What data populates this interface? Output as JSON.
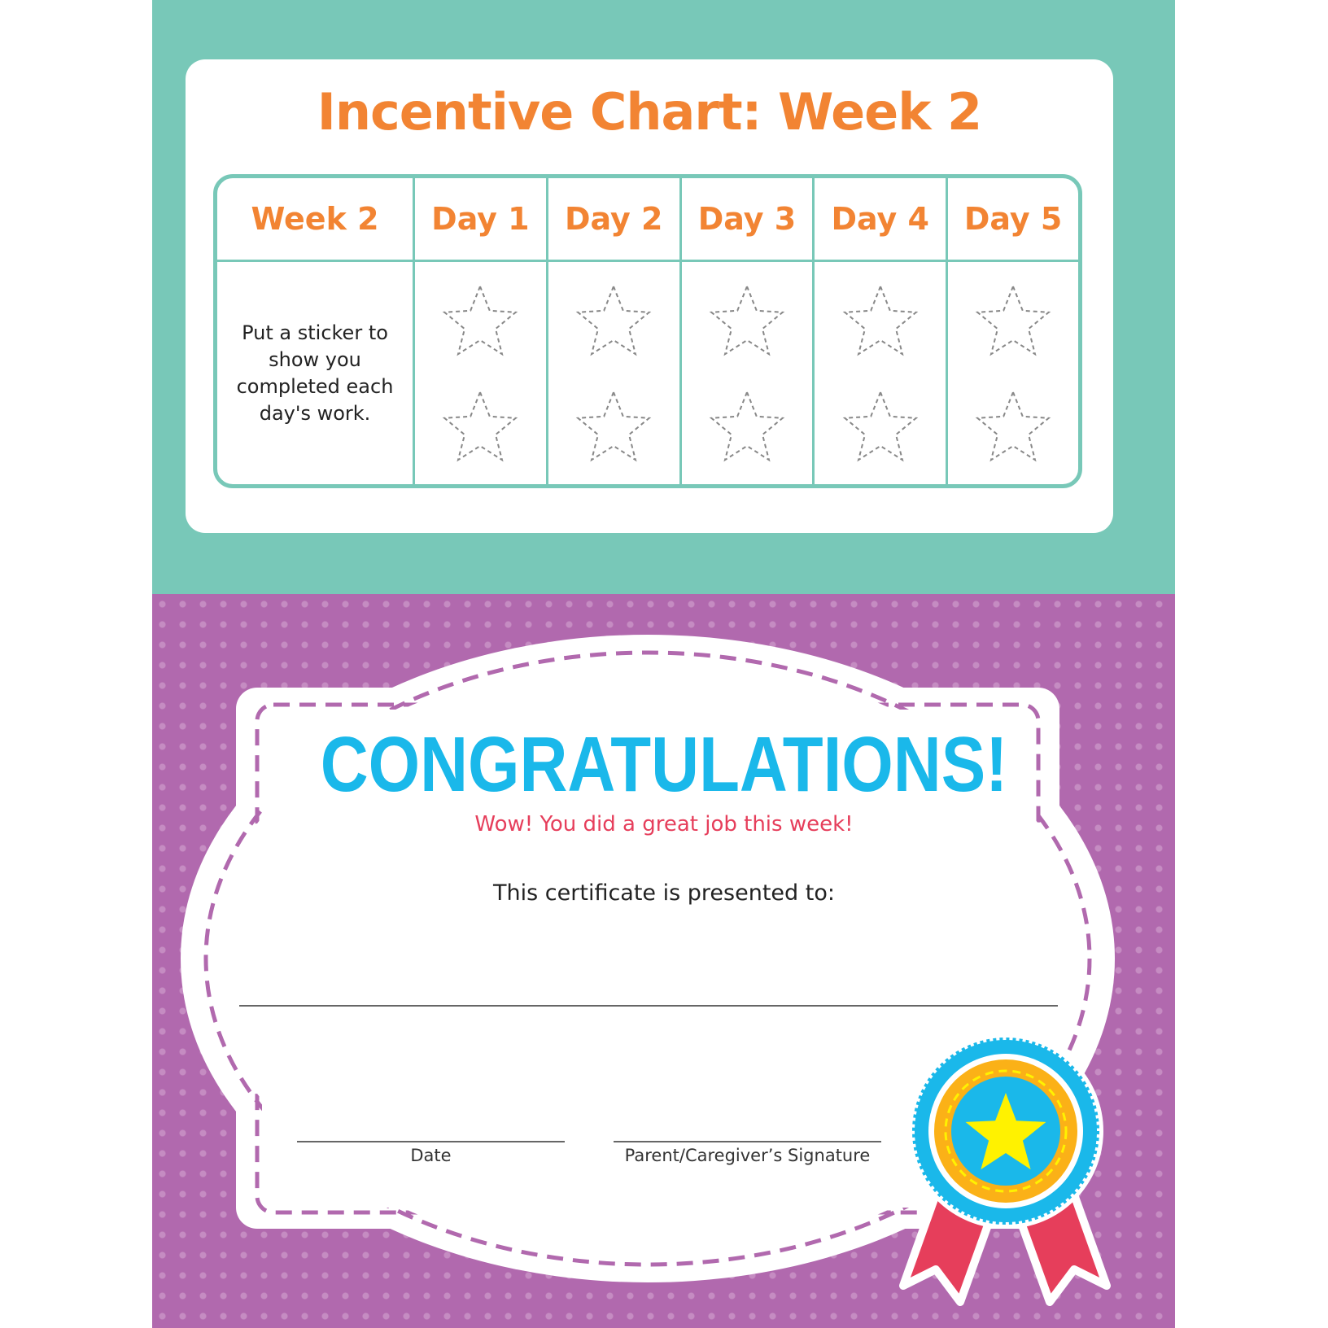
{
  "chart": {
    "title": "Incentive Chart: Week 2",
    "headers": [
      "Week 2",
      "Day 1",
      "Day 2",
      "Day 3",
      "Day 4",
      "Day 5"
    ],
    "instruction": "Put a sticker to show you completed each day's work.",
    "stars_per_day": 2,
    "star_icon": "dashed-star-outline"
  },
  "certificate": {
    "heading": "CONGRATULATIONS!",
    "subheading": "Wow! You did a great job this week!",
    "presented_to": "This certificate is presented to:",
    "date_label": "Date",
    "signature_label": "Parent/Caregiver’s Signature",
    "badge_icon": "award-ribbon-star"
  },
  "colors": {
    "teal": "#78c8b8",
    "purple": "#b169ae",
    "orange": "#f28433",
    "blue": "#1ab8ea",
    "red": "#e63e5b",
    "yellow": "#fff200",
    "gold": "#fbb117"
  }
}
